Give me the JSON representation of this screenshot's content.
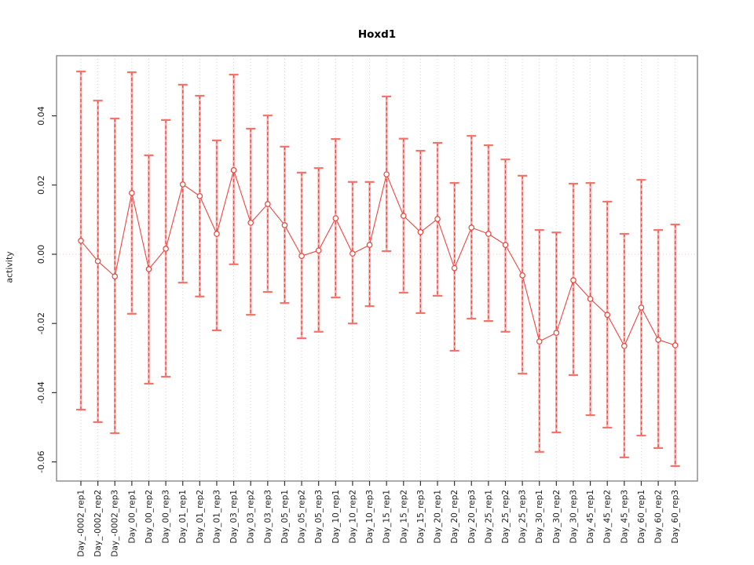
{
  "title": "Hoxd1",
  "axes": {
    "ylabel": "activity",
    "xlabel": ""
  },
  "chart_data": {
    "type": "line",
    "subtype": "means-with-error-bars",
    "title": "Hoxd1",
    "ylabel": "activity",
    "xlabel": "",
    "categories": [
      "Day_-0002_rep1",
      "Day_-0002_rep2",
      "Day_-0002_rep3",
      "Day_00_rep1",
      "Day_00_rep2",
      "Day_00_rep3",
      "Day_01_rep1",
      "Day_01_rep2",
      "Day_01_rep3",
      "Day_03_rep1",
      "Day_03_rep2",
      "Day_03_rep3",
      "Day_05_rep1",
      "Day_05_rep2",
      "Day_05_rep3",
      "Day_10_rep1",
      "Day_10_rep2",
      "Day_10_rep3",
      "Day_15_rep1",
      "Day_15_rep2",
      "Day_15_rep3",
      "Day_20_rep1",
      "Day_20_rep2",
      "Day_20_rep3",
      "Day_25_rep1",
      "Day_25_rep2",
      "Day_25_rep3",
      "Day_30_rep1",
      "Day_30_rep2",
      "Day_30_rep3",
      "Day_45_rep1",
      "Day_45_rep2",
      "Day_45_rep3",
      "Day_60_rep1",
      "Day_60_rep2",
      "Day_60_rep3"
    ],
    "series": [
      {
        "name": "activity",
        "values": [
          0.0039,
          -0.002,
          -0.0064,
          0.0177,
          -0.0043,
          0.0016,
          0.0202,
          0.0168,
          0.0059,
          0.0243,
          0.0091,
          0.0145,
          0.0084,
          -0.0005,
          0.0011,
          0.0104,
          0.0002,
          0.0027,
          0.0231,
          0.0111,
          0.0064,
          0.0102,
          -0.004,
          0.0077,
          0.0059,
          0.0027,
          -0.0061,
          -0.0252,
          -0.0227,
          -0.0075,
          -0.0129,
          -0.0175,
          -0.0265,
          -0.0154,
          -0.0247,
          -0.0263
        ],
        "upper": [
          0.0528,
          0.0444,
          0.0392,
          0.0526,
          0.0286,
          0.0388,
          0.049,
          0.0458,
          0.0329,
          0.0519,
          0.0363,
          0.0401,
          0.0311,
          0.0236,
          0.0249,
          0.0333,
          0.0209,
          0.0209,
          0.0456,
          0.0334,
          0.0299,
          0.0322,
          0.0206,
          0.0342,
          0.0315,
          0.0274,
          0.0227,
          0.007,
          0.0063,
          0.0204,
          0.0206,
          0.0152,
          0.0059,
          0.0215,
          0.007,
          0.0086
        ],
        "lower": [
          -0.0449,
          -0.0485,
          -0.0517,
          -0.0172,
          -0.0374,
          -0.0354,
          -0.0082,
          -0.0122,
          -0.022,
          -0.0029,
          -0.0175,
          -0.0109,
          -0.0141,
          -0.0243,
          -0.0224,
          -0.0125,
          -0.02,
          -0.015,
          0.0009,
          -0.0111,
          -0.017,
          -0.012,
          -0.0279,
          -0.0186,
          -0.0193,
          -0.0224,
          -0.0345,
          -0.0571,
          -0.0515,
          -0.0349,
          -0.0465,
          -0.0501,
          -0.0587,
          -0.0524,
          -0.056,
          -0.0612
        ]
      }
    ],
    "ytick_values": [
      0.04,
      0.02,
      0,
      -0.02,
      -0.04,
      -0.06
    ],
    "ylim": [
      -0.0655,
      0.0575
    ],
    "grid": "vertical dotted line per category; dotted horizontal line at zero",
    "legend": "none",
    "colors": {
      "bar_solid": "#fbaaa8",
      "bar_dash": "#e8433c",
      "cap": "#f4736a",
      "point_stroke": "#e8433c",
      "series_line": "#ee4540",
      "grid": "#d6d6d6",
      "zero_line": "#f0cccc",
      "box": "#7f7f7f",
      "text": "#1c1c1c"
    }
  }
}
